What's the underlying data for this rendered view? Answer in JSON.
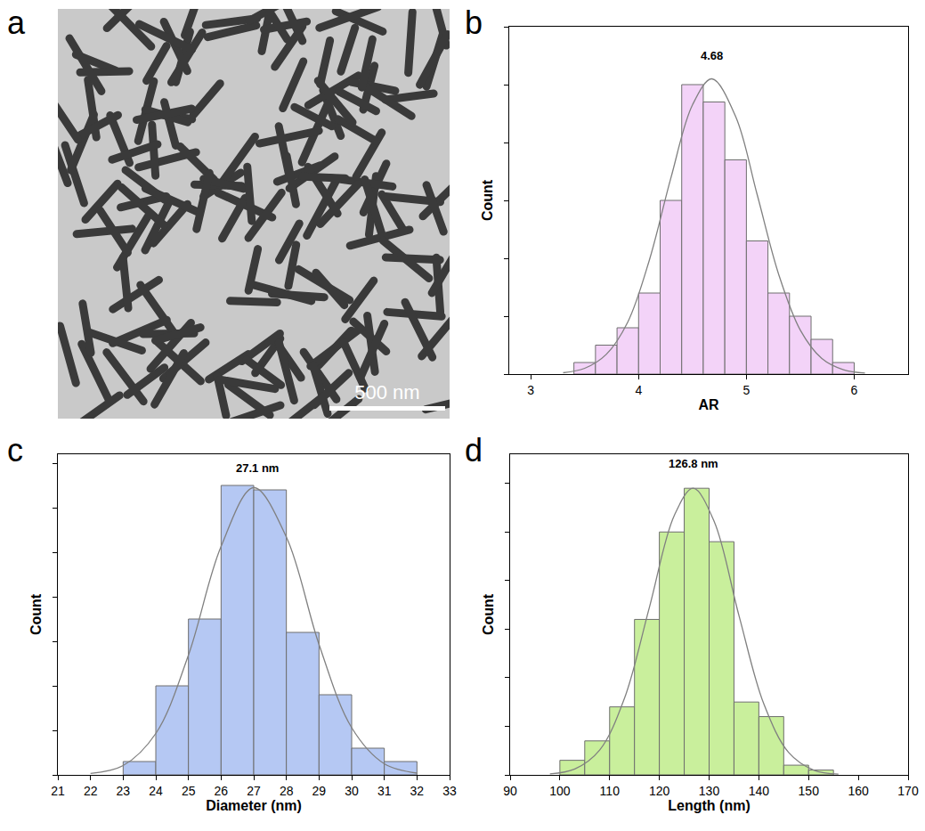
{
  "chart_data": [
    {
      "type": "image",
      "panel_label": "a",
      "scale_bar": "500 nm"
    },
    {
      "type": "histogram",
      "panel_label": "b",
      "x_label": "AR",
      "y_label": "Count",
      "bins": [
        3.4,
        3.6,
        3.8,
        4.0,
        4.2,
        4.4,
        4.6,
        4.8,
        5.0,
        5.2,
        5.4,
        5.6,
        5.8,
        6.0
      ],
      "counts": [
        2,
        5,
        8,
        14,
        30,
        50,
        47,
        37,
        23,
        14,
        10,
        6,
        2
      ],
      "color": "#f3d3f8",
      "fit_curve": {
        "x": [
          3.3,
          3.5,
          3.7,
          3.9,
          4.1,
          4.3,
          4.5,
          4.68,
          4.9,
          5.1,
          5.3,
          5.5,
          5.7,
          5.9,
          6.1
        ],
        "values": [
          0.23,
          1.0,
          3.4,
          9.0,
          19.7,
          33.9,
          46.5,
          51,
          44.5,
          31,
          17.2,
          7.6,
          2.7,
          0.76,
          0.17
        ],
        "color": "#808080"
      },
      "annotations": [
        {
          "text": "4.68",
          "x": 4.68,
          "y": 55
        }
      ],
      "xlim": [
        2.8,
        6.5
      ],
      "xticks": [
        3,
        4,
        5,
        6
      ],
      "ylim": [
        0,
        60
      ],
      "yticks": [
        0,
        10,
        20,
        30,
        40,
        50,
        60
      ],
      "tick_labels": "x",
      "grid": false
    },
    {
      "type": "histogram",
      "panel_label": "c",
      "x_label": "Diameter (nm)",
      "y_label": "Count",
      "bins": [
        23,
        24,
        25,
        26,
        27,
        28,
        29,
        30,
        31,
        32
      ],
      "counts": [
        3,
        20,
        35,
        65,
        64,
        32,
        18,
        6,
        3
      ],
      "color": "#b5c8f3",
      "fit_curve": {
        "x": [
          22,
          23,
          24,
          25,
          26,
          27,
          28,
          29,
          30,
          31,
          32
        ],
        "values": [
          0.32,
          2.1,
          9.3,
          26.9,
          51.3,
          64.5,
          53.4,
          29.3,
          10.6,
          2.5,
          0.4
        ],
        "color": "#808080"
      },
      "annotations": [
        {
          "text": "27.1 nm",
          "x": 27.1,
          "y": 69
        }
      ],
      "xlim": [
        21,
        33
      ],
      "xticks": [
        21,
        22,
        23,
        24,
        25,
        26,
        27,
        28,
        29,
        30,
        31,
        32,
        33
      ],
      "ylim": [
        0,
        72
      ],
      "yticks": [
        0,
        10,
        20,
        30,
        40,
        50,
        60,
        70
      ],
      "tick_labels": "x",
      "grid": false
    },
    {
      "type": "histogram",
      "panel_label": "d",
      "x_label": "Length (nm)",
      "y_label": "Count",
      "bins": [
        100,
        105,
        110,
        115,
        120,
        125,
        130,
        135,
        140,
        145,
        150,
        155
      ],
      "counts": [
        3,
        7,
        14,
        32,
        50,
        59,
        48,
        15,
        12,
        2,
        1
      ],
      "color": "#c9ef9c",
      "fit_curve": {
        "x": [
          98,
          103,
          108,
          113,
          118,
          123,
          126.8,
          131,
          136,
          141,
          146,
          151,
          156
        ],
        "values": [
          0.19,
          1.2,
          5.1,
          15.8,
          34.5,
          53.4,
          59,
          52.2,
          32.8,
          14.6,
          4.6,
          1.0,
          0.16
        ],
        "color": "#808080"
      },
      "annotations": [
        {
          "text": "126.8 nm",
          "x": 126.8,
          "y": 64
        }
      ],
      "xlim": [
        90,
        170
      ],
      "xticks": [
        90,
        100,
        110,
        120,
        130,
        140,
        150,
        160,
        170
      ],
      "ylim": [
        0,
        66
      ],
      "yticks": [
        0,
        10,
        20,
        30,
        40,
        50,
        60
      ],
      "tick_labels": "x",
      "grid": false
    }
  ]
}
